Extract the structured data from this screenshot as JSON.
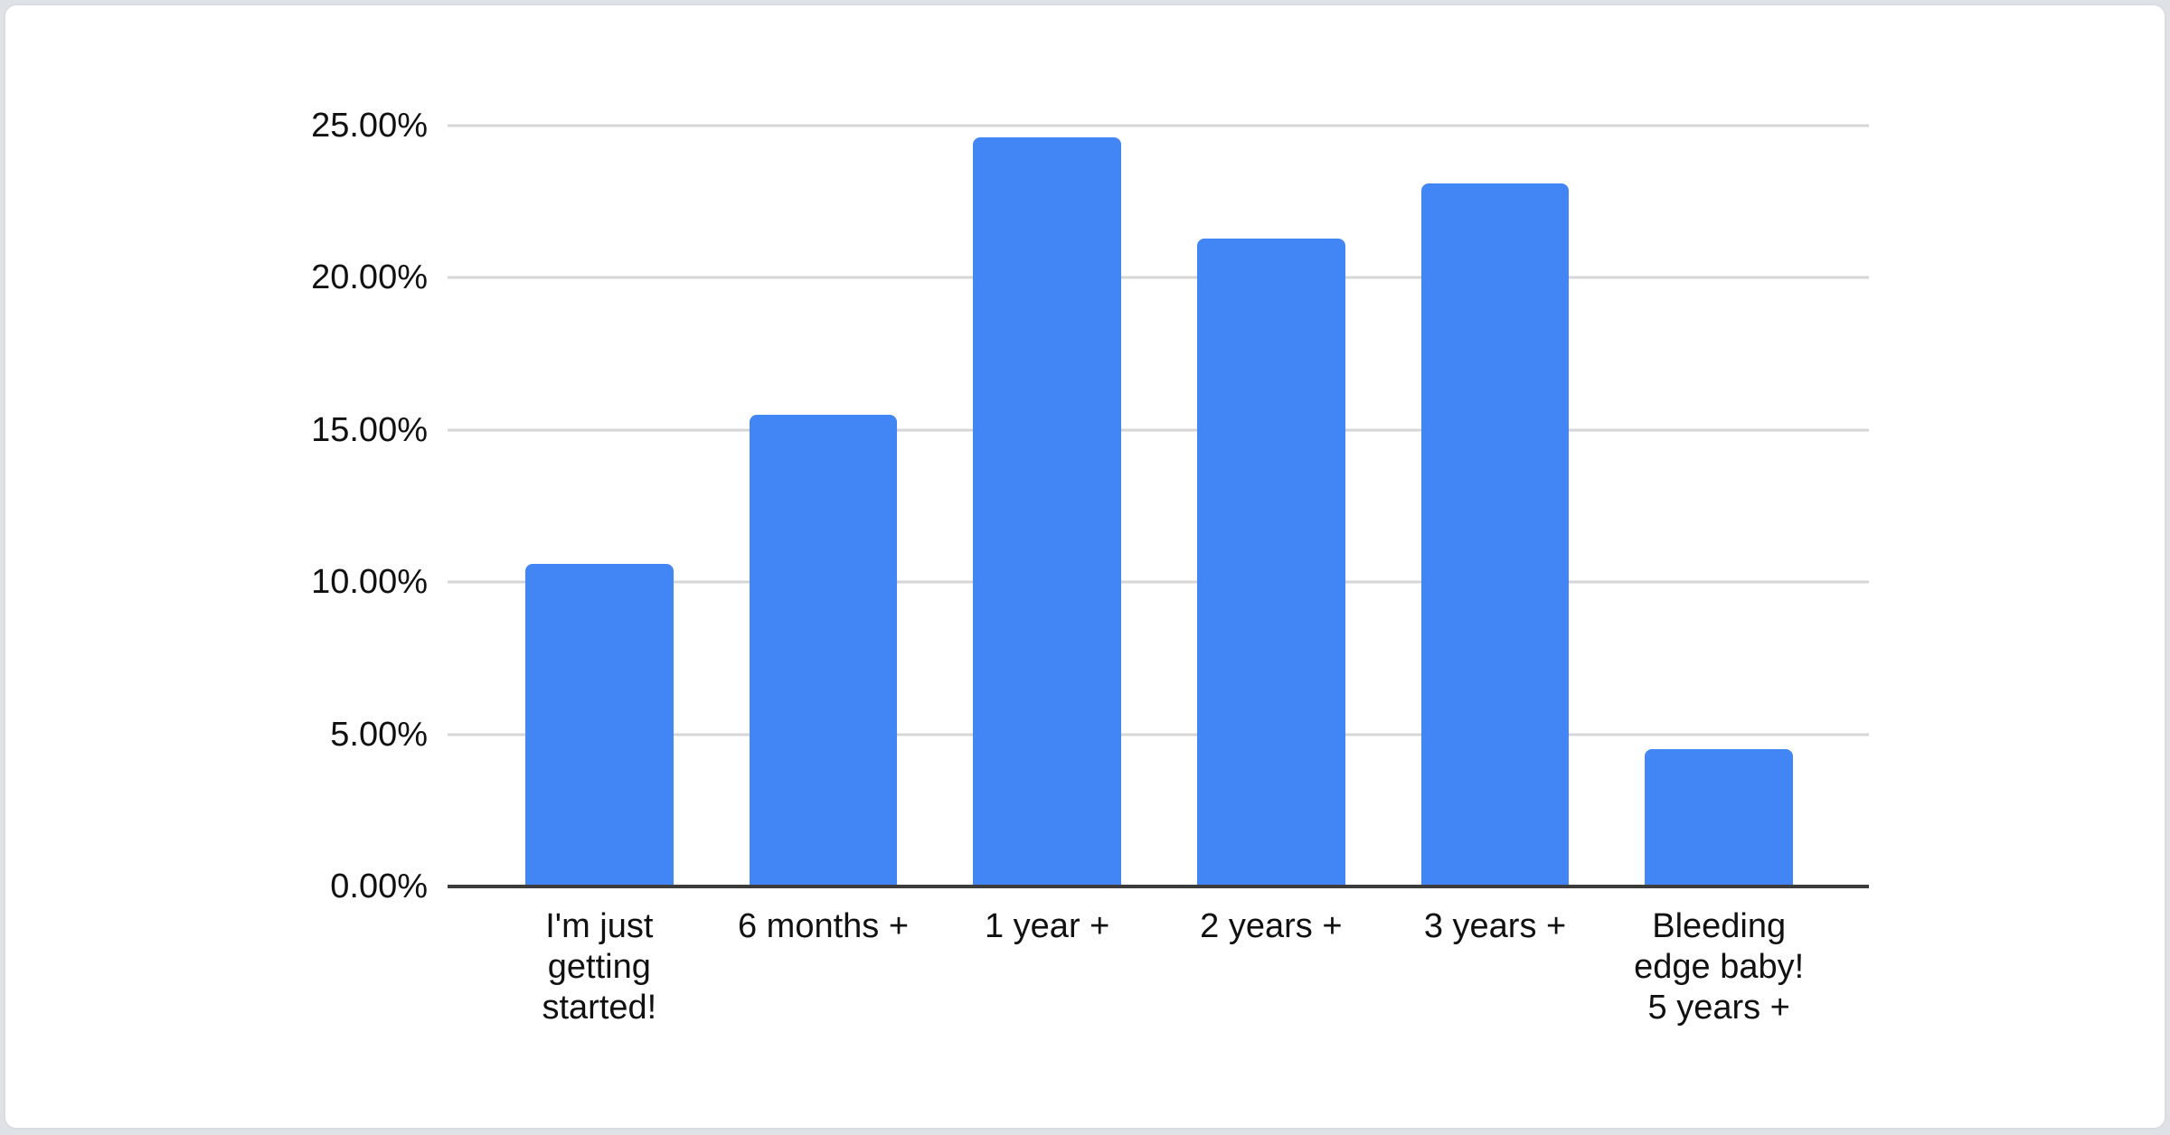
{
  "chart_data": {
    "type": "bar",
    "title": "",
    "xlabel": "",
    "ylabel": "",
    "categories": [
      "I'm just\ngetting\nstarted!",
      "6 months +",
      "1 year +",
      "2 years +",
      "3 years +",
      "Bleeding\nedge baby!\n5 years +"
    ],
    "values": [
      10.6,
      15.5,
      24.6,
      21.3,
      23.1,
      4.5
    ],
    "ylim": [
      0,
      25
    ],
    "yticks": [
      {
        "value": 0,
        "label": "0.00%"
      },
      {
        "value": 5,
        "label": "5.00%"
      },
      {
        "value": 10,
        "label": "10.00%"
      },
      {
        "value": 15,
        "label": "15.00%"
      },
      {
        "value": 20,
        "label": "20.00%"
      },
      {
        "value": 25,
        "label": "25.00%"
      }
    ],
    "grid": true,
    "legend": false,
    "bar_color": "#4285f4"
  },
  "colors": {
    "bar": "#4285f4",
    "gridline": "#d6d6d6",
    "axis_line": "#3c3c3c",
    "label_text": "#111111",
    "card_background": "#ffffff",
    "card_border": "#d9dce1",
    "page_background": "#dee1e5"
  }
}
